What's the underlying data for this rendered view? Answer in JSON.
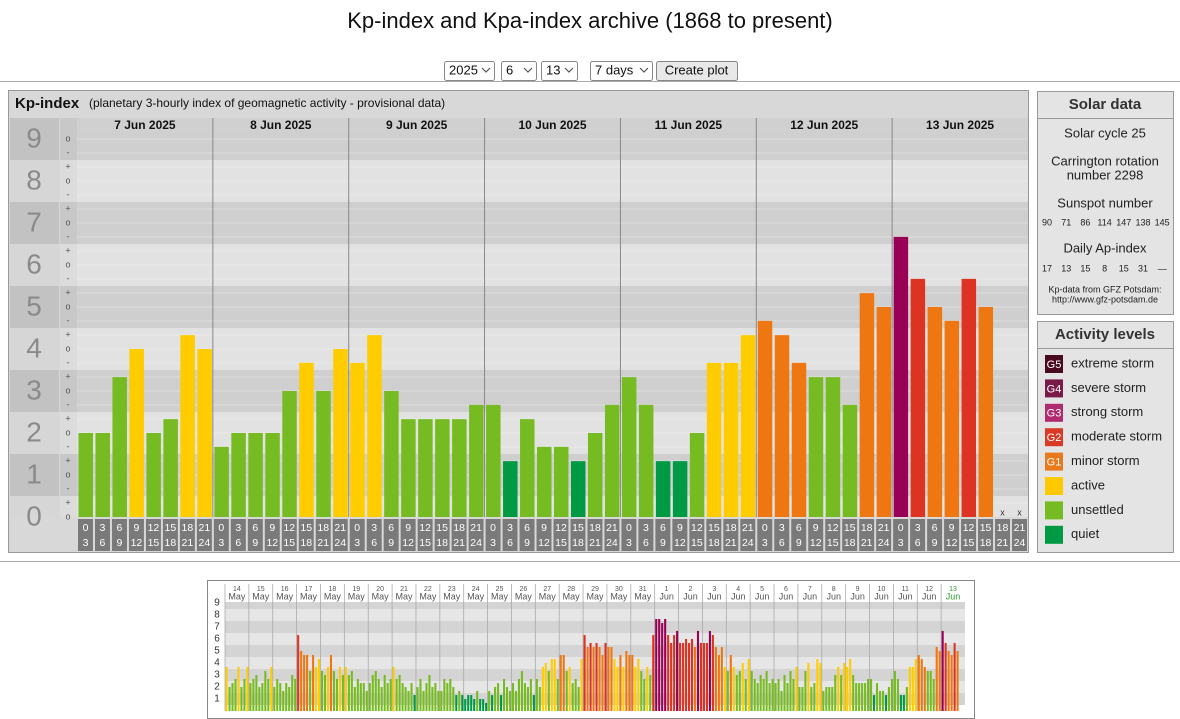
{
  "page": {
    "title": "Kp-index and Kpa-index archive (1868 to present)",
    "form": {
      "year": "2025",
      "month": "6",
      "day": "13",
      "range": "7 days",
      "button": "Create plot"
    },
    "solar": {
      "title": "Solar data",
      "cycle": "Solar cycle 25",
      "carrington": [
        "Carrington rotation",
        "number 2298"
      ],
      "sunspot_title": "Sunspot number",
      "sunspot": [
        90,
        71,
        86,
        114,
        147,
        138,
        145
      ],
      "ap_title": "Daily Ap-index",
      "ap": [
        17,
        13,
        15,
        8,
        15,
        31,
        "—"
      ],
      "source": [
        "Kp-data from GFZ Potsdam:",
        "http://www.gfz-potsdam.de"
      ]
    },
    "levels": {
      "title": "Activity levels",
      "items": [
        {
          "code": "G5",
          "label": "extreme storm",
          "color": "#4a0a22"
        },
        {
          "code": "G4",
          "label": "severe storm",
          "color": "#7a1a48"
        },
        {
          "code": "G3",
          "label": "strong storm",
          "color": "#b02a70"
        },
        {
          "code": "G2",
          "label": "moderate storm",
          "color": "#d93a26"
        },
        {
          "code": "G1",
          "label": "minor storm",
          "color": "#e87a1c"
        },
        {
          "label": "active",
          "color": "#ffc800"
        },
        {
          "label": "unsettled",
          "color": "#77bb22"
        },
        {
          "label": "quiet",
          "color": "#009944"
        }
      ]
    }
  },
  "chart_data": [
    {
      "type": "bar",
      "title": "Kp-index",
      "subtitle": "(planetary 3-hourly index of geomagnetic activity - provisional data)",
      "days": [
        "7 Jun 2025",
        "8 Jun 2025",
        "9 Jun 2025",
        "10 Jun 2025",
        "11 Jun 2025",
        "12 Jun 2025",
        "13 Jun 2025"
      ],
      "hours": [
        [
          "0",
          "3"
        ],
        [
          "3",
          "6"
        ],
        [
          "6",
          "9"
        ],
        [
          "9",
          "12"
        ],
        [
          "12",
          "15"
        ],
        [
          "15",
          "18"
        ],
        [
          "18",
          "21"
        ],
        [
          "21",
          "24"
        ]
      ],
      "values": [
        2,
        2,
        3.33,
        4,
        2,
        2.33,
        4.33,
        4,
        1.67,
        2,
        2,
        2,
        3,
        3.67,
        3,
        4,
        3.67,
        4.33,
        3,
        2.33,
        2.33,
        2.33,
        2.33,
        2.67,
        2.67,
        1.33,
        2.33,
        1.67,
        1.67,
        1.33,
        2,
        2.67,
        3.33,
        2.67,
        1.33,
        1.33,
        2,
        3.67,
        3.67,
        4.33,
        4.67,
        4.33,
        3.67,
        3.33,
        3.33,
        2.67,
        5.33,
        5,
        6.67,
        5.67,
        5,
        4.67,
        5.67,
        5,
        null,
        null
      ],
      "colors": [
        "#7b2",
        "#7b2",
        "#7b2",
        "#fc0",
        "#7b2",
        "#7b2",
        "#fc0",
        "#fc0",
        "#7b2",
        "#7b2",
        "#7b2",
        "#7b2",
        "#7b2",
        "#fc0",
        "#7b2",
        "#fc0",
        "#fc0",
        "#fc0",
        "#7b2",
        "#7b2",
        "#7b2",
        "#7b2",
        "#7b2",
        "#7b2",
        "#7b2",
        "#094",
        "#7b2",
        "#7b2",
        "#7b2",
        "#094",
        "#7b2",
        "#7b2",
        "#7b2",
        "#7b2",
        "#094",
        "#094",
        "#7b2",
        "#fc0",
        "#fc0",
        "#fc0",
        "#e71",
        "#e71",
        "#e71",
        "#7b2",
        "#7b2",
        "#7b2",
        "#e71",
        "#e71",
        "#905",
        "#d32",
        "#e71",
        "#e71",
        "#d32",
        "#e71",
        null,
        null
      ],
      "null_label": "x",
      "ylim": [
        0,
        9
      ],
      "yticks": [
        0,
        1,
        2,
        3,
        4,
        5,
        6,
        7,
        8,
        9
      ],
      "sub_marks": [
        "-",
        "o",
        "+"
      ],
      "grid": true
    },
    {
      "type": "bar",
      "days": [
        [
          "14",
          "May"
        ],
        [
          "15",
          "May"
        ],
        [
          "16",
          "May"
        ],
        [
          "17",
          "May"
        ],
        [
          "18",
          "May"
        ],
        [
          "19",
          "May"
        ],
        [
          "20",
          "May"
        ],
        [
          "21",
          "May"
        ],
        [
          "22",
          "May"
        ],
        [
          "23",
          "May"
        ],
        [
          "24",
          "May"
        ],
        [
          "25",
          "May"
        ],
        [
          "26",
          "May"
        ],
        [
          "27",
          "May"
        ],
        [
          "28",
          "May"
        ],
        [
          "29",
          "May"
        ],
        [
          "30",
          "May"
        ],
        [
          "31",
          "May"
        ],
        [
          "1",
          "Jun"
        ],
        [
          "2",
          "Jun"
        ],
        [
          "3",
          "Jun"
        ],
        [
          "4",
          "Jun"
        ],
        [
          "5",
          "Jun"
        ],
        [
          "6",
          "Jun"
        ],
        [
          "7",
          "Jun"
        ],
        [
          "8",
          "Jun"
        ],
        [
          "9",
          "Jun"
        ],
        [
          "10",
          "Jun"
        ],
        [
          "11",
          "Jun"
        ],
        [
          "12",
          "Jun"
        ],
        [
          "13",
          "Jun"
        ]
      ],
      "highlight_color": "#2a9a2a",
      "values": [
        3.67,
        2,
        2.33,
        2.67,
        3.67,
        2,
        2.67,
        3.67,
        2.33,
        2.67,
        3,
        2,
        2.33,
        3.33,
        2.67,
        3.67,
        2,
        2.67,
        2.33,
        1.67,
        2.33,
        2,
        3,
        2.67,
        6.33,
        5,
        4.67,
        4.67,
        3.33,
        4.67,
        3.67,
        4.33,
        3.33,
        3,
        3.67,
        4.67,
        3.33,
        2.67,
        3.67,
        3,
        3.67,
        3,
        3.33,
        2,
        2.67,
        2.33,
        2.33,
        1.67,
        2.33,
        3,
        3.33,
        2.67,
        2,
        3,
        2.33,
        2.67,
        3.67,
        2.67,
        3,
        2.33,
        2,
        1.67,
        2.33,
        1.33,
        2,
        2.67,
        1.67,
        2.33,
        3,
        2,
        2.33,
        1.67,
        1.67,
        2.67,
        2.33,
        2.67,
        2,
        1.33,
        1.67,
        1.33,
        1,
        1.33,
        1.33,
        1,
        1.67,
        1,
        1,
        0.67,
        1.67,
        1.33,
        2,
        2.33,
        1.33,
        2.67,
        2,
        1.67,
        2.33,
        1.67,
        2.67,
        3.33,
        2.33,
        2,
        2.67,
        1.33,
        2.67,
        2,
        3.67,
        4,
        3.33,
        4.33,
        4.33,
        2.67,
        4.67,
        4.67,
        3.33,
        3.67,
        2.33,
        2.67,
        2,
        4.33,
        6.33,
        5.33,
        5.67,
        5.33,
        5.67,
        5.33,
        4.67,
        5.67,
        5.33,
        5.33,
        4.33,
        3.67,
        4.67,
        3.67,
        5,
        4.67,
        4.67,
        3.67,
        4.33,
        3.33,
        2.67,
        3.67,
        3,
        6.33,
        7.67,
        7.67,
        7.33,
        7.67,
        6.33,
        5.67,
        6.33,
        6.67,
        5.67,
        5.67,
        6,
        5.67,
        6,
        5.33,
        6.67,
        5.67,
        5.67,
        5.67,
        6.67,
        6.33,
        5.33,
        4.67,
        5.33,
        3.67,
        3.33,
        4.67,
        3.67,
        3,
        3.33,
        4,
        2.67,
        4.33,
        3.33,
        2.67,
        2.33,
        3,
        2.67,
        3.33,
        2.33,
        2.67,
        2.33,
        2.67,
        1.67,
        3,
        2.33,
        3.33,
        2.67,
        3.67,
        2,
        2,
        3.33,
        4,
        2,
        2.33,
        4.33,
        4,
        1.67,
        2,
        2,
        2,
        3,
        3.67,
        3,
        4,
        3.67,
        4.33,
        3,
        2.33,
        2.33,
        2.33,
        2.33,
        2.67,
        2.67,
        1.33,
        2.33,
        1.67,
        1.67,
        1.33,
        2,
        2.67,
        3.33,
        2.67,
        1.33,
        1.33,
        2,
        3.67,
        3.67,
        4.33,
        4.67,
        4.33,
        3.67,
        3.33,
        3.33,
        2.67,
        5.33,
        5,
        6.67,
        5.67,
        5,
        4.67,
        5.67,
        5,
        null,
        null
      ],
      "colors": [
        "#fc0",
        "#7b2",
        "#7b2",
        "#7b2",
        "#fc0",
        "#7b2",
        "#7b2",
        "#fc0",
        "#7b2",
        "#7b2",
        "#7b2",
        "#7b2",
        "#7b2",
        "#7b2",
        "#7b2",
        "#fc0",
        "#7b2",
        "#7b2",
        "#7b2",
        "#7b2",
        "#7b2",
        "#7b2",
        "#7b2",
        "#7b2",
        "#d32",
        "#e71",
        "#e71",
        "#e71",
        "#7b2",
        "#e71",
        "#fc0",
        "#fc0",
        "#7b2",
        "#7b2",
        "#fc0",
        "#e71",
        "#7b2",
        "#7b2",
        "#fc0",
        "#7b2",
        "#fc0",
        "#7b2",
        "#7b2",
        "#7b2",
        "#7b2",
        "#7b2",
        "#7b2",
        "#7b2",
        "#7b2",
        "#7b2",
        "#7b2",
        "#7b2",
        "#7b2",
        "#7b2",
        "#7b2",
        "#7b2",
        "#fc0",
        "#7b2",
        "#7b2",
        "#7b2",
        "#7b2",
        "#7b2",
        "#7b2",
        "#094",
        "#7b2",
        "#7b2",
        "#7b2",
        "#7b2",
        "#7b2",
        "#7b2",
        "#7b2",
        "#7b2",
        "#7b2",
        "#7b2",
        "#7b2",
        "#7b2",
        "#7b2",
        "#094",
        "#7b2",
        "#094",
        "#094",
        "#094",
        "#094",
        "#094",
        "#7b2",
        "#094",
        "#094",
        "#094",
        "#7b2",
        "#094",
        "#7b2",
        "#7b2",
        "#094",
        "#7b2",
        "#7b2",
        "#7b2",
        "#7b2",
        "#7b2",
        "#7b2",
        "#7b2",
        "#7b2",
        "#7b2",
        "#7b2",
        "#094",
        "#7b2",
        "#7b2",
        "#fc0",
        "#fc0",
        "#7b2",
        "#fc0",
        "#fc0",
        "#7b2",
        "#e71",
        "#e71",
        "#7b2",
        "#fc0",
        "#7b2",
        "#7b2",
        "#7b2",
        "#fc0",
        "#d32",
        "#e71",
        "#d32",
        "#e71",
        "#d32",
        "#e71",
        "#e71",
        "#d32",
        "#e71",
        "#e71",
        "#fc0",
        "#fc0",
        "#e71",
        "#fc0",
        "#e71",
        "#e71",
        "#e71",
        "#fc0",
        "#fc0",
        "#7b2",
        "#7b2",
        "#fc0",
        "#7b2",
        "#d32",
        "#905",
        "#905",
        "#905",
        "#905",
        "#d32",
        "#d32",
        "#d32",
        "#905",
        "#d32",
        "#d32",
        "#d32",
        "#d32",
        "#d32",
        "#e71",
        "#905",
        "#d32",
        "#d32",
        "#d32",
        "#905",
        "#d32",
        "#e71",
        "#e71",
        "#e71",
        "#fc0",
        "#7b2",
        "#e71",
        "#fc0",
        "#7b2",
        "#7b2",
        "#fc0",
        "#7b2",
        "#fc0",
        "#7b2",
        "#7b2",
        "#7b2",
        "#7b2",
        "#7b2",
        "#7b2",
        "#7b2",
        "#7b2",
        "#7b2",
        "#7b2",
        "#7b2",
        "#7b2",
        "#7b2",
        "#7b2",
        "#7b2",
        "#fc0",
        "#7b2",
        "#7b2",
        "#7b2",
        "#fc0",
        "#7b2",
        "#7b2",
        "#fc0",
        "#fc0",
        "#7b2",
        "#7b2",
        "#7b2",
        "#7b2",
        "#7b2",
        "#fc0",
        "#7b2",
        "#fc0",
        "#fc0",
        "#fc0",
        "#7b2",
        "#7b2",
        "#7b2",
        "#7b2",
        "#7b2",
        "#7b2",
        "#7b2",
        "#094",
        "#7b2",
        "#7b2",
        "#7b2",
        "#094",
        "#7b2",
        "#7b2",
        "#7b2",
        "#7b2",
        "#094",
        "#094",
        "#7b2",
        "#fc0",
        "#fc0",
        "#fc0",
        "#e71",
        "#e71",
        "#e71",
        "#7b2",
        "#7b2",
        "#7b2",
        "#e71",
        "#e71",
        "#905",
        "#d32",
        "#e71",
        "#e71",
        "#d32",
        "#e71",
        null,
        null
      ],
      "ylim": [
        0,
        9
      ],
      "yticks": [
        1,
        2,
        3,
        4,
        5,
        6,
        7,
        8,
        9
      ]
    }
  ]
}
